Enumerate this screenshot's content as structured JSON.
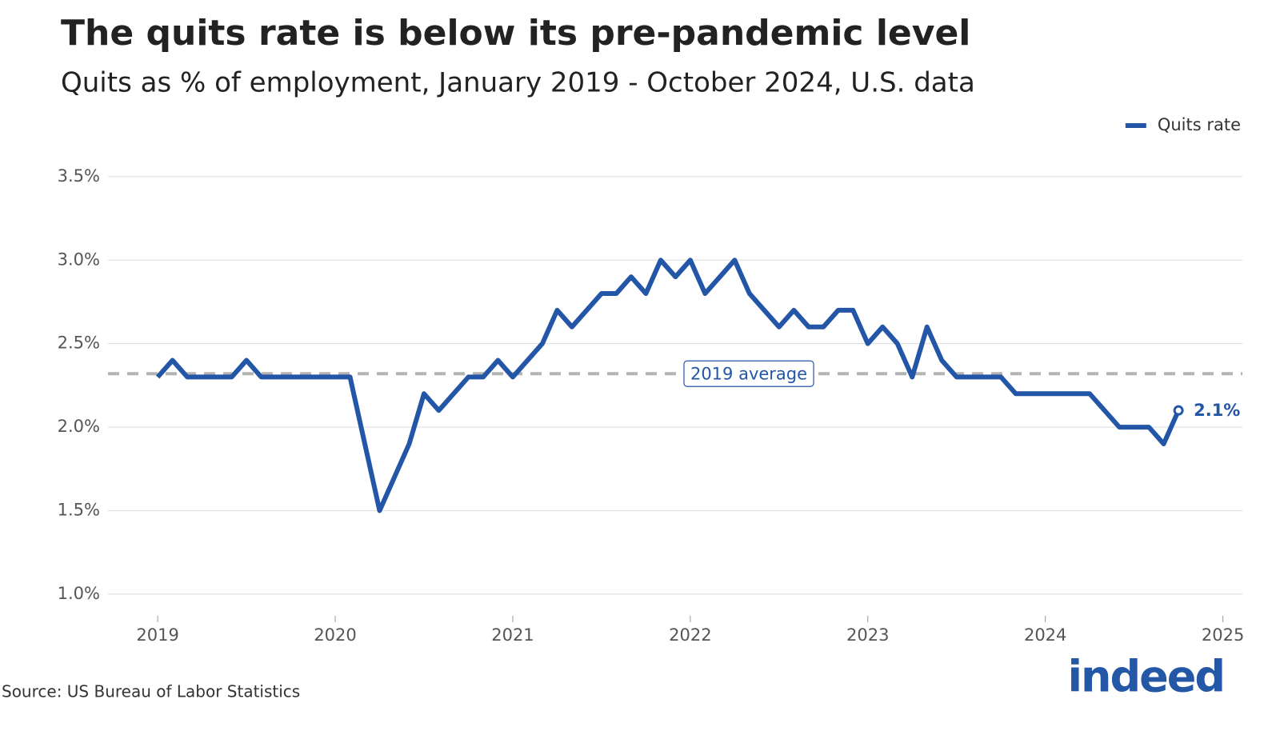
{
  "chart_data": {
    "type": "line",
    "title": "The quits rate is below its pre-pandemic level",
    "subtitle": "Quits as % of employment, January 2019 - October 2024, U.S. data",
    "source": "Source: US Bureau of Labor Statistics",
    "logo": "indeed",
    "legend": "top-right",
    "grid": true,
    "x": [
      "2019-01",
      "2019-02",
      "2019-03",
      "2019-04",
      "2019-05",
      "2019-06",
      "2019-07",
      "2019-08",
      "2019-09",
      "2019-10",
      "2019-11",
      "2019-12",
      "2020-01",
      "2020-02",
      "2020-03",
      "2020-04",
      "2020-05",
      "2020-06",
      "2020-07",
      "2020-08",
      "2020-09",
      "2020-10",
      "2020-11",
      "2020-12",
      "2021-01",
      "2021-02",
      "2021-03",
      "2021-04",
      "2021-05",
      "2021-06",
      "2021-07",
      "2021-08",
      "2021-09",
      "2021-10",
      "2021-11",
      "2021-12",
      "2022-01",
      "2022-02",
      "2022-03",
      "2022-04",
      "2022-05",
      "2022-06",
      "2022-07",
      "2022-08",
      "2022-09",
      "2022-10",
      "2022-11",
      "2022-12",
      "2023-01",
      "2023-02",
      "2023-03",
      "2023-04",
      "2023-05",
      "2023-06",
      "2023-07",
      "2023-08",
      "2023-09",
      "2023-10",
      "2023-11",
      "2023-12",
      "2024-01",
      "2024-02",
      "2024-03",
      "2024-04",
      "2024-05",
      "2024-06",
      "2024-07",
      "2024-08",
      "2024-09",
      "2024-10"
    ],
    "series": [
      {
        "name": "Quits rate",
        "color": "#2356a6",
        "values": [
          2.3,
          2.4,
          2.3,
          2.3,
          2.3,
          2.3,
          2.4,
          2.3,
          2.3,
          2.3,
          2.3,
          2.3,
          2.3,
          2.3,
          1.9,
          1.5,
          1.7,
          1.9,
          2.2,
          2.1,
          2.2,
          2.3,
          2.3,
          2.4,
          2.3,
          2.4,
          2.5,
          2.7,
          2.6,
          2.7,
          2.8,
          2.8,
          2.9,
          2.8,
          3.0,
          2.9,
          3.0,
          2.8,
          2.9,
          3.0,
          2.8,
          2.7,
          2.6,
          2.7,
          2.6,
          2.6,
          2.7,
          2.7,
          2.5,
          2.6,
          2.5,
          2.3,
          2.6,
          2.4,
          2.3,
          2.3,
          2.3,
          2.3,
          2.2,
          2.2,
          2.2,
          2.2,
          2.2,
          2.2,
          2.1,
          2.0,
          2.0,
          2.0,
          1.9,
          2.1
        ],
        "value_labels": [
          null,
          null,
          null,
          null,
          null,
          null,
          null,
          null,
          null,
          null,
          null,
          null,
          null,
          null,
          null,
          null,
          null,
          null,
          null,
          null,
          null,
          null,
          null,
          null,
          null,
          null,
          null,
          null,
          null,
          null,
          null,
          null,
          null,
          null,
          null,
          null,
          null,
          null,
          null,
          null,
          null,
          null,
          null,
          null,
          null,
          null,
          null,
          null,
          null,
          null,
          null,
          null,
          null,
          null,
          null,
          null,
          null,
          null,
          null,
          null,
          null,
          null,
          null,
          null,
          null,
          null,
          null,
          null,
          null,
          "2.1%"
        ]
      }
    ],
    "average": {
      "label": "2019 average",
      "value": 2.32,
      "color": "#b3b3b3"
    },
    "xlim": [
      2018.72,
      2025.11
    ],
    "xticks": [
      2019,
      2020,
      2021,
      2022,
      2023,
      2024,
      2025
    ],
    "ylim": [
      0.87,
      3.6
    ],
    "yticks": [
      {
        "value": 1.0,
        "label": "1.0%"
      },
      {
        "value": 1.5,
        "label": "1.5%"
      },
      {
        "value": 2.0,
        "label": "2.0%"
      },
      {
        "value": 2.5,
        "label": "2.5%"
      },
      {
        "value": 3.0,
        "label": "3.0%"
      },
      {
        "value": 3.5,
        "label": "3.5%"
      }
    ]
  }
}
